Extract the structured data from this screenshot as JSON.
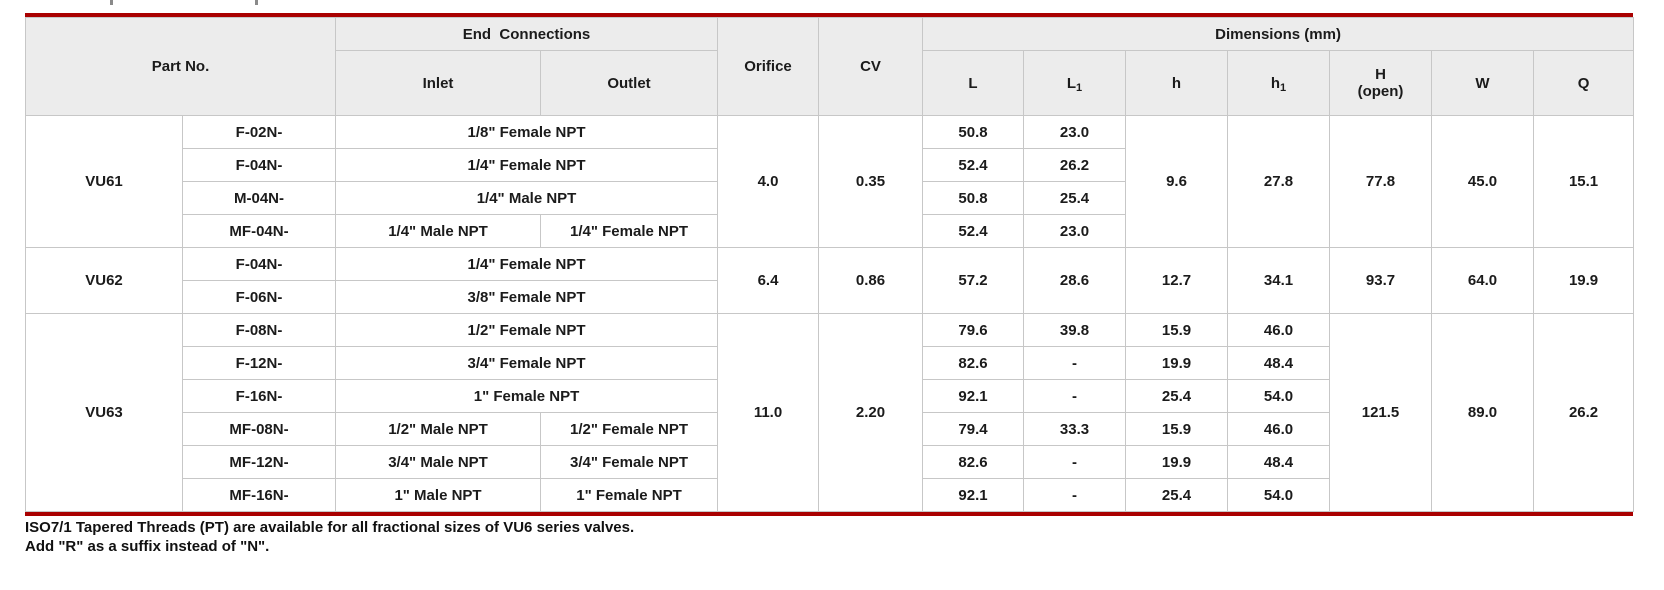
{
  "colors": {
    "accent_red": "#a90000",
    "header_bg": "#ececec",
    "border_gray": "#c7c7c7",
    "text": "#1b1b1b"
  },
  "table": {
    "headers": {
      "part_no": "Part No.",
      "end_connections": "End  Connections",
      "inlet": "Inlet",
      "outlet": "Outlet",
      "orifice": "Orifice",
      "cv": "CV",
      "dimensions": "Dimensions (mm)",
      "dim_cols": [
        {
          "base": "L",
          "sub": ""
        },
        {
          "base": "L",
          "sub": "1"
        },
        {
          "base": "h",
          "sub": ""
        },
        {
          "base": "h",
          "sub": "1"
        },
        {
          "base": "H",
          "sub": "",
          "line2": "(open)"
        },
        {
          "base": "W",
          "sub": ""
        },
        {
          "base": "Q",
          "sub": ""
        }
      ]
    },
    "groups": [
      {
        "name": "VU61",
        "orifice": "4.0",
        "cv": "0.35",
        "h": "9.6",
        "h1": "27.8",
        "H": "77.8",
        "W": "45.0",
        "Q": "15.1",
        "rows": [
          {
            "part": "F-02N-",
            "conn": "1/8\" Female NPT",
            "L": "50.8",
            "L1": "23.0"
          },
          {
            "part": "F-04N-",
            "conn": "1/4\" Female NPT",
            "L": "52.4",
            "L1": "26.2"
          },
          {
            "part": "M-04N-",
            "conn": "1/4\" Male NPT",
            "L": "50.8",
            "L1": "25.4"
          },
          {
            "part": "MF-04N-",
            "inlet": "1/4\" Male NPT",
            "outlet": "1/4\" Female NPT",
            "L": "52.4",
            "L1": "23.0"
          }
        ]
      },
      {
        "name": "VU62",
        "orifice": "6.4",
        "cv": "0.86",
        "L": "57.2",
        "L1": "28.6",
        "h": "12.7",
        "h1": "34.1",
        "H": "93.7",
        "W": "64.0",
        "Q": "19.9",
        "rows": [
          {
            "part": "F-04N-",
            "conn": "1/4\" Female NPT"
          },
          {
            "part": "F-06N-",
            "conn": "3/8\" Female NPT"
          }
        ]
      },
      {
        "name": "VU63",
        "orifice": "11.0",
        "cv": "2.20",
        "H": "121.5",
        "W": "89.0",
        "Q": "26.2",
        "rows": [
          {
            "part": "F-08N-",
            "conn": "1/2\" Female NPT",
            "L": "79.6",
            "L1": "39.8",
            "h": "15.9",
            "h1": "46.0"
          },
          {
            "part": "F-12N-",
            "conn": "3/4\" Female NPT",
            "L": "82.6",
            "L1": "-",
            "h": "19.9",
            "h1": "48.4"
          },
          {
            "part": "F-16N-",
            "conn": "1\" Female NPT",
            "L": "92.1",
            "L1": "-",
            "h": "25.4",
            "h1": "54.0"
          },
          {
            "part": "MF-08N-",
            "inlet": "1/2\" Male NPT",
            "outlet": "1/2\" Female NPT",
            "L": "79.4",
            "L1": "33.3",
            "h": "15.9",
            "h1": "46.0"
          },
          {
            "part": "MF-12N-",
            "inlet": "3/4\" Male NPT",
            "outlet": "3/4\" Female NPT",
            "L": "82.6",
            "L1": "-",
            "h": "19.9",
            "h1": "48.4"
          },
          {
            "part": "MF-16N-",
            "inlet": "1\" Male NPT",
            "outlet": "1\" Female NPT",
            "L": "92.1",
            "L1": "-",
            "h": "25.4",
            "h1": "54.0"
          }
        ]
      }
    ]
  },
  "footnotes": {
    "line1": "ISO7/1 Tapered Threads (PT) are available for all fractional sizes of VU6 series valves.",
    "line2": "Add \"R\" as a suffix instead of \"N\"."
  }
}
